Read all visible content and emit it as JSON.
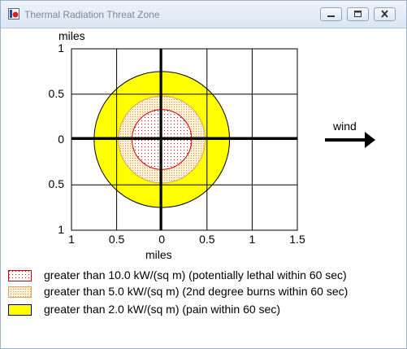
{
  "window": {
    "title": "Thermal Radiation Threat Zone",
    "icon": "aloha-app-icon",
    "controls": [
      "minimize-icon",
      "maximize-icon",
      "close-icon"
    ]
  },
  "chart_data": {
    "type": "threat-zone-plot",
    "title": "",
    "xlabel": "miles",
    "ylabel": "miles",
    "xlim": [
      -1,
      1.5
    ],
    "ylim": [
      -1,
      1
    ],
    "x_ticks": [
      "1",
      "0.5",
      "0",
      "0.5",
      "1",
      "1.5"
    ],
    "y_ticks": [
      "1",
      "0.5",
      "0",
      "0.5",
      "1"
    ],
    "grid": true,
    "zones": [
      {
        "name": "greater than 10.0 kW/(sq m) (potentially lethal within 60 sec)",
        "radius": 0.33,
        "fill": "#ffffff",
        "stroke": "#cc0000",
        "pattern": "red-dots"
      },
      {
        "name": "greater than 5.0 kW/(sq m) (2nd degree burns within 60 sec)",
        "radius": 0.48,
        "fill": "#f7e6b8",
        "stroke": "#e0a060",
        "pattern": "orange-dots"
      },
      {
        "name": "greater than 2.0 kW/(sq m) (pain within 60 sec)",
        "radius": 0.75,
        "fill": "#ffff00",
        "stroke": "#000000",
        "pattern": "solid"
      }
    ],
    "wind_label": "wind",
    "wind_direction": "east"
  },
  "legend": [
    {
      "text": "greater than 10.0 kW/(sq m) (potentially lethal within 60 sec)",
      "swatch": "red-dots"
    },
    {
      "text": "greater than 5.0 kW/(sq m) (2nd degree burns within 60 sec)",
      "swatch": "orange-dots"
    },
    {
      "text": "greater than 2.0 kW/(sq m) (pain within 60 sec)",
      "swatch": "yellow"
    }
  ],
  "colors": {
    "yellow": "#ffff00",
    "lethal": "#cc0000",
    "burns": "#f0c070"
  }
}
